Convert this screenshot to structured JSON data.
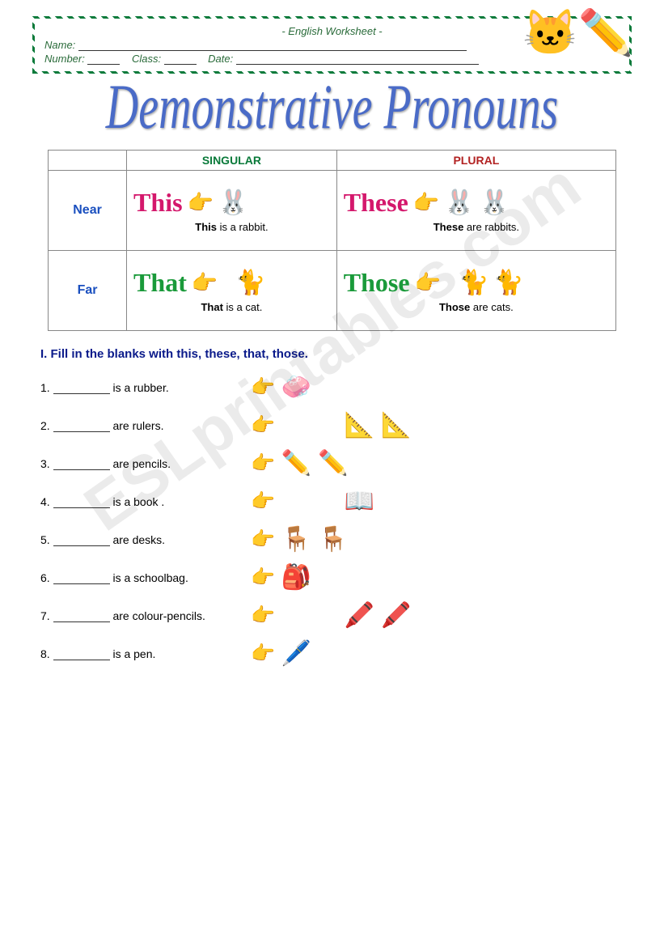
{
  "watermark": "ESLprintables.com",
  "header": {
    "title": "- English Worksheet -",
    "name_label": "Name:",
    "number_label": "Number:",
    "class_label": "Class:",
    "date_label": "Date:"
  },
  "main_title": "Demonstrative Pronouns",
  "table": {
    "col1": "SINGULAR",
    "col2": "PLURAL",
    "row1": "Near",
    "row2": "Far",
    "cells": {
      "near_sing": {
        "word": "This",
        "word_color": "#d4186c",
        "sentence_bold": "This",
        "sentence_rest": " is a rabbit.",
        "animal": "🐰",
        "count": 1
      },
      "near_plur": {
        "word": "These",
        "word_color": "#d4186c",
        "sentence_bold": "These",
        "sentence_rest": " are rabbits.",
        "animal": "🐰",
        "count": 2
      },
      "far_sing": {
        "word": "That",
        "word_color": "#1a9a3a",
        "sentence_bold": "That",
        "sentence_rest": " is a cat.",
        "animal": "🐈",
        "count": 1
      },
      "far_plur": {
        "word": "Those",
        "word_color": "#1a9a3a",
        "sentence_bold": "Those",
        "sentence_rest": " are cats.",
        "animal": "🐈",
        "count": 2
      }
    }
  },
  "instruction": "I.  Fill in the blanks with this, these, that, those.",
  "exercises": [
    {
      "num": "1.",
      "text": " is a rubber.",
      "near": true,
      "obj": "🧼",
      "count": 1
    },
    {
      "num": "2.",
      "text": " are rulers.",
      "near": false,
      "obj": "📐",
      "count": 2
    },
    {
      "num": "3.",
      "text": " are pencils.",
      "near": true,
      "obj": "✏️",
      "count": 2
    },
    {
      "num": "4.",
      "text": " is a book .",
      "near": false,
      "obj": "📖",
      "count": 1
    },
    {
      "num": "5.",
      "text": " are desks.",
      "near": true,
      "obj": "🪑",
      "count": 2
    },
    {
      "num": "6.",
      "text": " is a schoolbag.",
      "near": true,
      "obj": "🎒",
      "count": 1
    },
    {
      "num": "7.",
      "text": " are colour-pencils.",
      "near": false,
      "obj": "🖍️",
      "count": 2
    },
    {
      "num": "8.",
      "text": " is a pen.",
      "near": true,
      "obj": "🖊️",
      "count": 1
    }
  ]
}
